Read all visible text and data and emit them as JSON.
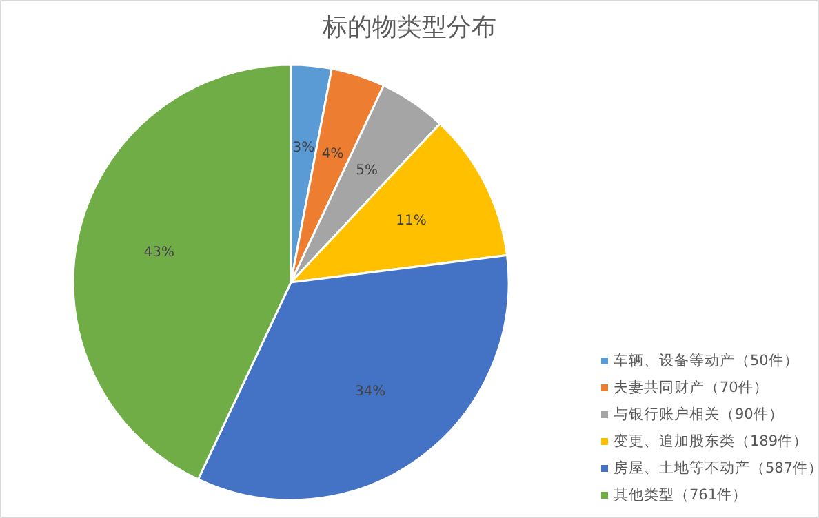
{
  "chart_data": {
    "type": "pie",
    "title": "标的物类型分布",
    "categories": [
      "车辆、设备等动产（50件）",
      "夫妻共同财产（70件）",
      "与银行账户相关（90件）",
      "变更、追加股东类（189件）",
      "房屋、土地等不动产（587件）",
      "其他类型（761件）"
    ],
    "values": [
      3,
      4,
      5,
      11,
      34,
      43
    ],
    "colors": [
      "#5b9bd5",
      "#ed7d31",
      "#a5a5a5",
      "#ffc000",
      "#4472c4",
      "#70ad47"
    ],
    "value_labels": [
      "3%",
      "4%",
      "5%",
      "11%",
      "34%",
      "43%"
    ],
    "legend": "bottom right"
  }
}
